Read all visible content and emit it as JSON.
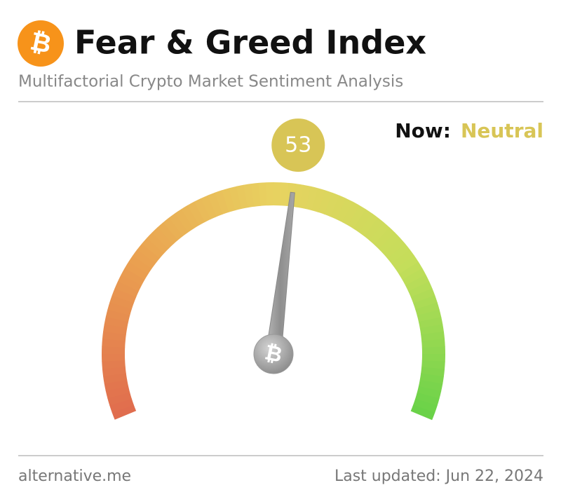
{
  "chart_data": {
    "type": "gauge",
    "title": "Fear & Greed Index",
    "subtitle": "Multifactorial Crypto Market Sentiment Analysis",
    "logo_symbol": "₿",
    "now_label": "Now:",
    "classification": "Neutral",
    "classification_color": "#d8c556",
    "value": 53,
    "ylim": [
      0,
      100
    ],
    "source": "alternative.me",
    "last_updated": "Last updated: Jun 22, 2024"
  }
}
